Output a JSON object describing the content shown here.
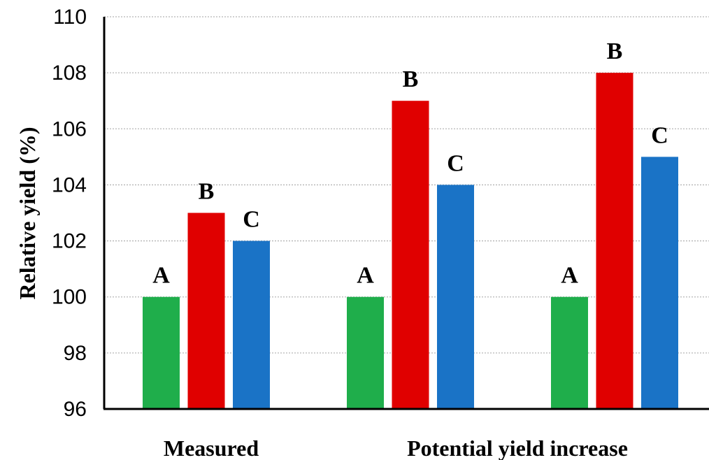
{
  "chart_data": {
    "type": "bar",
    "ylabel": "Relative yield (%)",
    "ylim": [
      96,
      110
    ],
    "yticks": [
      96,
      98,
      100,
      102,
      104,
      106,
      108,
      110
    ],
    "grid": true,
    "categories": [
      "Measured",
      "Potential yield increase",
      ""
    ],
    "series": [
      {
        "values": [
          100,
          100,
          100
        ],
        "labels": [
          "A",
          "A",
          "A"
        ],
        "color": "#1fae4b"
      },
      {
        "values": [
          103,
          107,
          108
        ],
        "labels": [
          "B",
          "B",
          "B"
        ],
        "color": "#e00000"
      },
      {
        "values": [
          102,
          104,
          105
        ],
        "labels": [
          "C",
          "C",
          "C"
        ],
        "color": "#1a73c6"
      }
    ]
  }
}
